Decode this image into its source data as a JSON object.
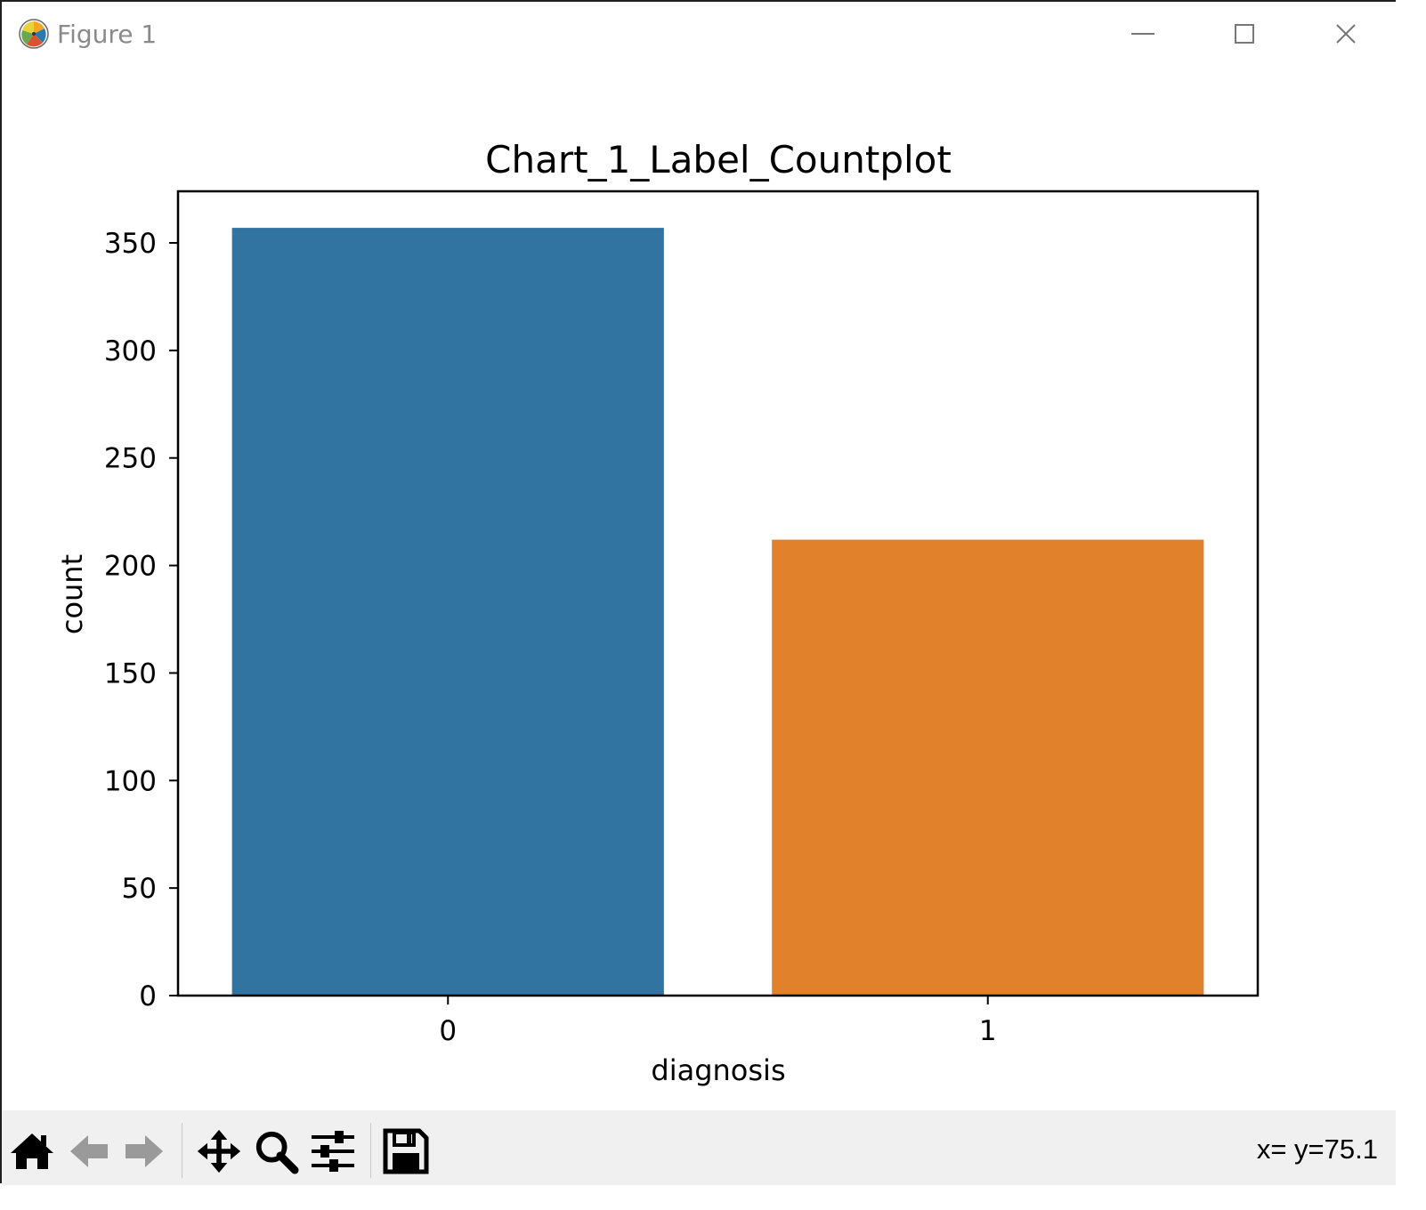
{
  "window": {
    "title": "Figure 1"
  },
  "toolbar": {
    "buttons": [
      {
        "name": "home-icon"
      },
      {
        "name": "back-arrow-icon"
      },
      {
        "name": "forward-arrow-icon"
      },
      {
        "name": "pan-icon"
      },
      {
        "name": "zoom-icon"
      },
      {
        "name": "configure-subplots-icon"
      },
      {
        "name": "save-icon"
      }
    ],
    "coords": "x= y=75.1"
  },
  "chart_data": {
    "type": "bar",
    "title": "Chart_1_Label_Countplot",
    "xlabel": "diagnosis",
    "ylabel": "count",
    "categories": [
      "0",
      "1"
    ],
    "values": [
      357,
      212
    ],
    "colors": [
      "#3274a1",
      "#e1812c"
    ],
    "ylim": [
      0,
      374
    ],
    "yticks": [
      0,
      50,
      100,
      150,
      200,
      250,
      300,
      350
    ],
    "grid": false
  }
}
